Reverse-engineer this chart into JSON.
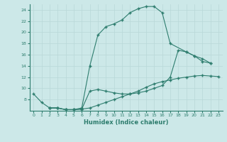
{
  "xlabel": "Humidex (Indice chaleur)",
  "bg_color": "#cce8e8",
  "line_color": "#2e7d6e",
  "grid_color": "#b8d8d8",
  "xlim": [
    -0.5,
    23.5
  ],
  "ylim": [
    6,
    25
  ],
  "xticks": [
    0,
    1,
    2,
    3,
    4,
    5,
    6,
    7,
    8,
    9,
    10,
    11,
    12,
    13,
    14,
    15,
    16,
    17,
    18,
    19,
    20,
    21,
    22,
    23
  ],
  "yticks": [
    8,
    10,
    12,
    14,
    16,
    18,
    20,
    22,
    24
  ],
  "curve1_x": [
    0,
    1,
    2,
    3,
    4,
    5,
    6,
    7,
    8,
    9,
    10,
    11,
    12,
    13,
    14,
    15,
    16,
    17,
    19,
    20,
    21,
    22
  ],
  "curve1_y": [
    9.0,
    7.5,
    6.5,
    6.5,
    6.2,
    6.2,
    6.5,
    14.0,
    19.5,
    21.0,
    21.5,
    22.2,
    23.5,
    24.2,
    24.6,
    24.6,
    23.5,
    18.0,
    16.5,
    15.8,
    15.3,
    14.5
  ],
  "curve2_x": [
    2,
    3,
    4,
    5,
    6,
    7,
    8,
    9,
    10,
    11,
    12,
    13,
    14,
    15,
    16,
    17,
    18,
    19,
    20,
    21,
    22,
    23
  ],
  "curve2_y": [
    6.5,
    6.5,
    6.2,
    6.2,
    6.3,
    6.5,
    7.0,
    7.5,
    8.0,
    8.5,
    9.0,
    9.5,
    10.2,
    10.8,
    11.2,
    11.5,
    11.8,
    12.0,
    12.2,
    12.3,
    12.2,
    12.1
  ],
  "curve3_x": [
    2,
    3,
    4,
    5,
    6,
    7,
    8,
    9,
    10,
    11,
    12,
    13,
    14,
    15,
    16,
    17,
    18,
    19,
    20,
    21,
    22
  ],
  "curve3_y": [
    6.5,
    6.5,
    6.2,
    6.2,
    6.3,
    9.5,
    9.8,
    9.5,
    9.2,
    9.0,
    9.0,
    9.2,
    9.5,
    10.0,
    10.5,
    12.0,
    16.8,
    16.5,
    15.8,
    14.8,
    14.5
  ]
}
